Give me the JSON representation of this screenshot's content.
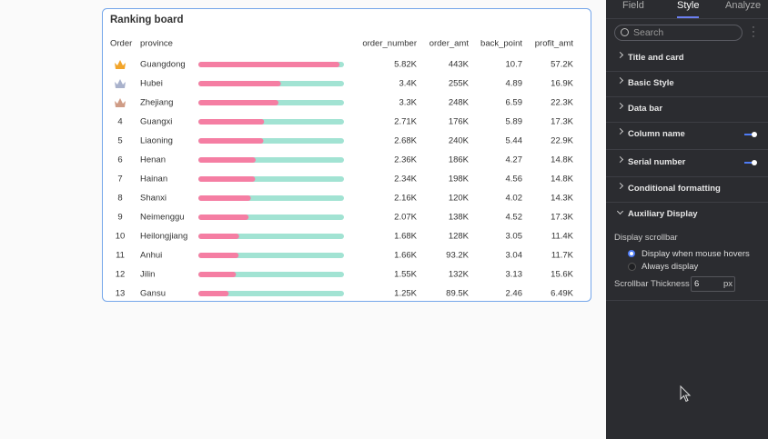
{
  "card": {
    "title": "Ranking board",
    "columns": [
      "Order",
      "province",
      "order_number",
      "order_amt",
      "back_point",
      "profit_amt"
    ],
    "bar_range": [
      0,
      6000
    ],
    "rows": [
      {
        "order": null,
        "province": "Guangdong",
        "order_number": {
          "value": 5820,
          "label": "5.82K"
        },
        "order_amt": "443K",
        "back_point": 10.7,
        "profit_amt": "57.2K"
      },
      {
        "order": null,
        "province": "Hubei",
        "order_number": {
          "value": 3400,
          "label": "3.4K"
        },
        "order_amt": "255K",
        "back_point": 4.89,
        "profit_amt": "16.9K"
      },
      {
        "order": null,
        "province": "Zhejiang",
        "order_number": {
          "value": 3300,
          "label": "3.3K"
        },
        "order_amt": "248K",
        "back_point": 6.59,
        "profit_amt": "22.3K"
      },
      {
        "order": 4,
        "province": "Guangxi",
        "order_number": {
          "value": 2710,
          "label": "2.71K"
        },
        "order_amt": "176K",
        "back_point": 5.89,
        "profit_amt": "17.3K"
      },
      {
        "order": 5,
        "province": "Liaoning",
        "order_number": {
          "value": 2680,
          "label": "2.68K"
        },
        "order_amt": "240K",
        "back_point": 5.44,
        "profit_amt": "22.9K"
      },
      {
        "order": 6,
        "province": "Henan",
        "order_number": {
          "value": 2360,
          "label": "2.36K"
        },
        "order_amt": "186K",
        "back_point": 4.27,
        "profit_amt": "14.8K"
      },
      {
        "order": 7,
        "province": "Hainan",
        "order_number": {
          "value": 2340,
          "label": "2.34K"
        },
        "order_amt": "198K",
        "back_point": 4.56,
        "profit_amt": "14.8K"
      },
      {
        "order": 8,
        "province": "Shanxi",
        "order_number": {
          "value": 2160,
          "label": "2.16K"
        },
        "order_amt": "120K",
        "back_point": 4.02,
        "profit_amt": "14.3K"
      },
      {
        "order": 9,
        "province": "Neimenggu",
        "order_number": {
          "value": 2070,
          "label": "2.07K"
        },
        "order_amt": "138K",
        "back_point": 4.52,
        "profit_amt": "17.3K"
      },
      {
        "order": 10,
        "province": "Heilongjiang",
        "order_number": {
          "value": 1680,
          "label": "1.68K"
        },
        "order_amt": "128K",
        "back_point": 3.05,
        "profit_amt": "11.4K"
      },
      {
        "order": 11,
        "province": "Anhui",
        "order_number": {
          "value": 1660,
          "label": "1.66K"
        },
        "order_amt": "93.2K",
        "back_point": 3.04,
        "profit_amt": "11.7K"
      },
      {
        "order": 12,
        "province": "Jilin",
        "order_number": {
          "value": 1550,
          "label": "1.55K"
        },
        "order_amt": "132K",
        "back_point": 3.13,
        "profit_amt": "15.6K"
      },
      {
        "order": 13,
        "province": "Gansu",
        "order_number": {
          "value": 1250,
          "label": "1.25K"
        },
        "order_amt": "89.5K",
        "back_point": 2.46,
        "profit_amt": "6.49K"
      }
    ]
  },
  "panel": {
    "tabs": [
      "Field",
      "Style",
      "Analyze"
    ],
    "active_tab": 1,
    "search_placeholder": "Search",
    "sections": [
      {
        "label": "Title and card",
        "toggle": false
      },
      {
        "label": "Basic Style",
        "toggle": false
      },
      {
        "label": "Data bar",
        "toggle": false
      },
      {
        "label": "Column name",
        "toggle": true
      },
      {
        "label": "Serial number",
        "toggle": true
      },
      {
        "label": "Conditional formatting",
        "toggle": false
      },
      {
        "label": "Auxiliary Display",
        "toggle": false
      }
    ],
    "scrollbar_label": "Display scrollbar",
    "scrollbar_options": [
      "Display when mouse hovers",
      "Always display"
    ],
    "scrollbar_selected": 0,
    "thickness_label": "Scrollbar Thickness",
    "thickness": 6,
    "thickness_unit": "px"
  }
}
